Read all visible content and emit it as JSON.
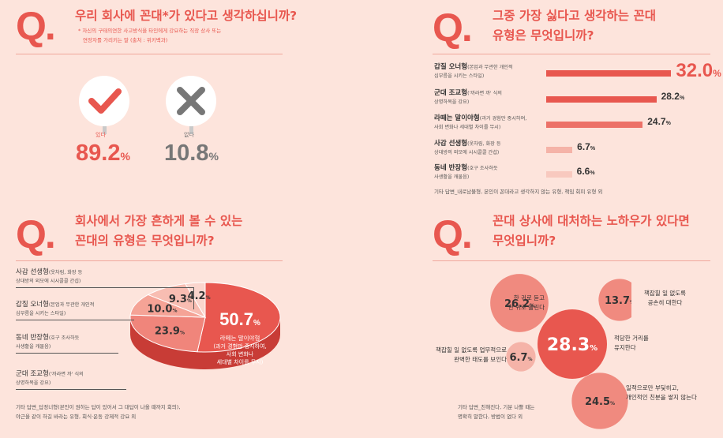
{
  "colors": {
    "accent": "#e8574f",
    "pink": "#f0857b",
    "light": "#f5b3a8",
    "bg": "#fde4dc"
  },
  "q1": {
    "mark": "Q.",
    "title": "우리 회사에 꼰대*가 있다고 생각하십니까?",
    "note1": "* 자신의 구태의연한 사고방식을 타인에게 강요하는 직장 상사 또는",
    "note2": "연장자를 가리키는 말 (출처 : 위키백과)",
    "yes_icon": "check-icon",
    "no_icon": "x-icon",
    "chart_data": {
      "type": "table",
      "categories": [
        "있다",
        "없다"
      ],
      "values": [
        89.2,
        10.8
      ],
      "labels": [
        "89.2",
        "10.8"
      ],
      "unit": "%"
    }
  },
  "q2": {
    "mark": "Q.",
    "title1": "그중 가장 싫다고 생각하는 꼰대",
    "title2": "유형은 무엇입니까?",
    "items": [
      {
        "name": "갑질 오너형",
        "sub1": "(본업과 무관한 개인적",
        "sub2": "심부름을 시키는 스타일)"
      },
      {
        "name": "군대 조교형",
        "sub1": "('까라면 까' 식의",
        "sub2": "상명하복을 강요)"
      },
      {
        "name": "라떼는 말이야형",
        "sub1": "(과거 경험만 중시하여,",
        "sub2": "사회 변화나 세대별 차이를 무시)"
      },
      {
        "name": "사감 선생형",
        "sub1": "(옷차림, 화장 등",
        "sub2": "상대방의 외모에 시시콜콜 간섭)"
      },
      {
        "name": "동네 반장형",
        "sub1": "(호구 조사하듯",
        "sub2": "사생활을 캐물음)"
      }
    ],
    "value_labels": [
      "32.0",
      "28.2",
      "24.7",
      "6.7",
      "6.6"
    ],
    "unit": "%",
    "footnote": "기타 답변_내로남불형, 본인이 꼰대라고 생각하지 않는 유형, 책임 회피 유형 외",
    "chart_data": {
      "type": "bar",
      "categories": [
        "갑질 오너형",
        "군대 조교형",
        "라떼는 말이야형",
        "사감 선생형",
        "동네 반장형"
      ],
      "values": [
        32.0,
        28.2,
        24.7,
        6.7,
        6.6
      ],
      "colors": [
        "#e8574f",
        "#e8574f",
        "#ec7168",
        "#f5b3a8",
        "#f8c9bf"
      ]
    }
  },
  "q3": {
    "mark": "Q.",
    "title1": "회사에서 가장 흔하게 볼 수 있는",
    "title2": "꼰대의 유형은 무엇입니까?",
    "labels": [
      {
        "name": "사감 선생형",
        "sub1": "(옷차림, 화장 등",
        "sub2": "상대방의 외모에 시시콜콜 간섭)"
      },
      {
        "name": "갑질 오너형",
        "sub1": "(본업과 무관한 개인적",
        "sub2": "심부름을 시키는 스타일)"
      },
      {
        "name": "동네 반장형",
        "sub1": "(호구 조사하듯",
        "sub2": "사생활을 캐물음)"
      },
      {
        "name": "군대 조교형",
        "sub1": "('까라면 까' 식의",
        "sub2": "상명하복을 강요)"
      }
    ],
    "main_label": "라떼는 말이야형",
    "main_desc1": "(과거 경험만 중시하여,",
    "main_desc2": "사회 변화나",
    "main_desc3": "세대별 차이를 무시)",
    "value_labels": [
      "50.7",
      "23.9",
      "10.0",
      "9.3",
      "4.2"
    ],
    "unit": "%",
    "footnote1": "기타 답변_답정너형(본인이 원하는 답이 있어서 그 대답이 나올 때까지 회의),",
    "footnote2": "야근을 같이 하길 바라는 유형, 회식·운동 강제적 강요 외",
    "chart_data": {
      "type": "pie",
      "categories": [
        "라떼는 말이야형",
        "군대 조교형",
        "동네 반장형",
        "갑질 오너형",
        "사감 선생형"
      ],
      "values": [
        50.7,
        23.9,
        10.0,
        9.3,
        4.2
      ],
      "colors": [
        "#e8574f",
        "#f0857b",
        "#f5a396",
        "#f8bdb2",
        "#fbd5cd"
      ]
    }
  },
  "q4": {
    "mark": "Q.",
    "title1": "꼰대 상사에 대처하는 노하우가 있다면",
    "title2": "무엇입니까?",
    "bubbles": [
      {
        "label1": "적당한 거리를",
        "label2": "유지한다"
      },
      {
        "label1": "한 귀로 듣고",
        "label2": "한 귀로 흘린다"
      },
      {
        "label1": "일적으로만 부딪히고,",
        "label2": "개인적인 친분을 쌓지 않는다"
      },
      {
        "label1": "책잡힐 일 없도록",
        "label2": "공손히 대한다"
      },
      {
        "label1": "책잡힐 일 없도록 업무적으로",
        "label2": "완벽한 태도를 보인다"
      }
    ],
    "value_labels": [
      "28.3",
      "26.2",
      "24.5",
      "13.7",
      "6.7"
    ],
    "unit": "%",
    "footnote1": "기타 답변_친해진다, 기분 나쁠 때는",
    "footnote2": "명확히 말한다, 방법이 없다 외",
    "chart_data": {
      "type": "scatter",
      "categories": [
        "적당한 거리를 유지한다",
        "한 귀로 듣고 한 귀로 흘린다",
        "일적으로만 부딪히고, 개인적인 친분을 쌓지 않는다",
        "책잡힐 일 없도록 공손히 대한다",
        "책잡힐 일 없도록 업무적으로 완벽한 태도를 보인다"
      ],
      "values": [
        28.3,
        26.2,
        24.5,
        13.7,
        6.7
      ]
    }
  }
}
